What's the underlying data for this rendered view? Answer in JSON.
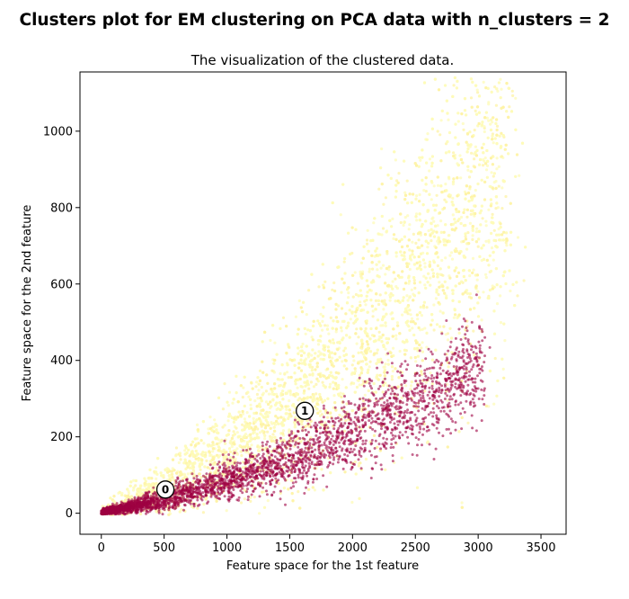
{
  "figure": {
    "suptitle": "Clusters plot for EM clustering on PCA data with n_clusters = 2"
  },
  "chart_data": {
    "type": "scatter",
    "title": "The visualization of the clustered data.",
    "xlabel": "Feature space for the 1st feature",
    "ylabel": "Feature space for the 2nd feature",
    "xlim": [
      -170,
      3700
    ],
    "ylim": [
      -55,
      1155
    ],
    "xticks": [
      0,
      500,
      1000,
      1500,
      2000,
      2500,
      3000,
      3500
    ],
    "yticks": [
      0,
      200,
      400,
      600,
      800,
      1000
    ],
    "grid": false,
    "colors": {
      "cluster_0": "#9e0142",
      "cluster_1": "#fefbb8",
      "cluster_1_dense": "#fdf3a6",
      "centroid_fill": "#ffffff",
      "centroid_edge": "#000000"
    },
    "clusters": [
      {
        "id": 0,
        "description_points": [
          [
            20,
            2
          ],
          [
            60,
            6
          ],
          [
            120,
            12
          ],
          [
            200,
            22
          ],
          [
            300,
            35
          ],
          [
            400,
            48
          ],
          [
            500,
            62
          ],
          [
            600,
            80
          ],
          [
            700,
            96
          ],
          [
            800,
            112
          ],
          [
            900,
            126
          ],
          [
            1000,
            140
          ],
          [
            1100,
            152
          ],
          [
            1200,
            160
          ],
          [
            1300,
            170
          ],
          [
            1400,
            185
          ],
          [
            1500,
            200
          ],
          [
            1600,
            215
          ],
          [
            1700,
            228
          ],
          [
            1800,
            240
          ],
          [
            1900,
            252
          ],
          [
            2000,
            262
          ],
          [
            2200,
            285
          ],
          [
            2400,
            310
          ],
          [
            2600,
            335
          ],
          [
            2800,
            360
          ],
          [
            2950,
            380
          ],
          [
            3000,
            372
          ],
          [
            3050,
            390
          ],
          [
            2900,
            320
          ],
          [
            2000,
            200
          ],
          [
            1400,
            130
          ],
          [
            900,
            80
          ],
          [
            600,
            45
          ]
        ]
      },
      {
        "id": 1,
        "description_points": [
          [
            50,
            5
          ],
          [
            200,
            25
          ],
          [
            400,
            55
          ],
          [
            600,
            90
          ],
          [
            800,
            130
          ],
          [
            1000,
            170
          ],
          [
            1200,
            210
          ],
          [
            1400,
            250
          ],
          [
            1600,
            290
          ],
          [
            1800,
            330
          ],
          [
            2000,
            370
          ],
          [
            2200,
            410
          ],
          [
            2400,
            450
          ],
          [
            2600,
            500
          ],
          [
            2800,
            560
          ],
          [
            2900,
            640
          ],
          [
            3000,
            720
          ],
          [
            3100,
            800
          ],
          [
            3200,
            900
          ],
          [
            3300,
            1100
          ],
          [
            2100,
            700
          ],
          [
            2500,
            300
          ],
          [
            2700,
            700
          ],
          [
            1500,
            420
          ],
          [
            1300,
            380
          ],
          [
            3400,
            620
          ],
          [
            3500,
            450
          ],
          [
            2300,
            540
          ],
          [
            2900,
            950
          ],
          [
            3000,
            560
          ]
        ]
      }
    ],
    "centroids": [
      {
        "label": "0",
        "x": 510,
        "y": 62
      },
      {
        "label": "1",
        "x": 1620,
        "y": 268
      }
    ]
  }
}
